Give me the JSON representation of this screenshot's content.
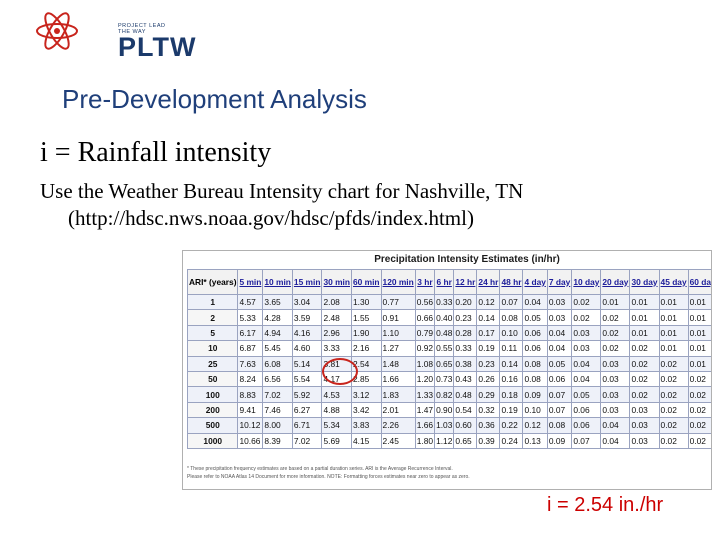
{
  "logo": {
    "tagline": "PROJECT LEAD THE WAY",
    "wordmark": "PLTW",
    "accent_red": "#c8241c",
    "accent_blue": "#1b3a6b"
  },
  "slide": {
    "title": "Pre-Development Analysis",
    "line1": "i = Rainfall intensity",
    "para_line1": "Use the Weather Bureau Intensity chart for Nashville, TN",
    "para_line2": "(http://hdsc.nws.noaa.gov/hdsc/pfds/index.html)",
    "answer": "i = 2.54 in./hr"
  },
  "chart": {
    "title": "Precipitation Intensity Estimates (in/hr)",
    "headers": [
      "ARI* (years)",
      "5 min",
      "10 min",
      "15 min",
      "30 min",
      "60 min",
      "120 min",
      "3 hr",
      "6 hr",
      "12 hr",
      "24 hr",
      "48 hr",
      "4 day",
      "7 day",
      "10 day",
      "20 day",
      "30 day",
      "45 day",
      "60 day"
    ],
    "rows": [
      [
        "1",
        "4.57",
        "3.65",
        "3.04",
        "2.08",
        "1.30",
        "0.77",
        "0.56",
        "0.33",
        "0.20",
        "0.12",
        "0.07",
        "0.04",
        "0.03",
        "0.02",
        "0.01",
        "0.01",
        "0.01",
        "0.01"
      ],
      [
        "2",
        "5.33",
        "4.28",
        "3.59",
        "2.48",
        "1.55",
        "0.91",
        "0.66",
        "0.40",
        "0.23",
        "0.14",
        "0.08",
        "0.05",
        "0.03",
        "0.02",
        "0.02",
        "0.01",
        "0.01",
        "0.01"
      ],
      [
        "5",
        "6.17",
        "4.94",
        "4.16",
        "2.96",
        "1.90",
        "1.10",
        "0.79",
        "0.48",
        "0.28",
        "0.17",
        "0.10",
        "0.06",
        "0.04",
        "0.03",
        "0.02",
        "0.01",
        "0.01",
        "0.01"
      ],
      [
        "10",
        "6.87",
        "5.45",
        "4.60",
        "3.33",
        "2.16",
        "1.27",
        "0.92",
        "0.55",
        "0.33",
        "0.19",
        "0.11",
        "0.06",
        "0.04",
        "0.03",
        "0.02",
        "0.02",
        "0.01",
        "0.01"
      ],
      [
        "25",
        "7.63",
        "6.08",
        "5.14",
        "3.81",
        "2.54",
        "1.48",
        "1.08",
        "0.65",
        "0.38",
        "0.23",
        "0.14",
        "0.08",
        "0.05",
        "0.04",
        "0.03",
        "0.02",
        "0.02",
        "0.01"
      ],
      [
        "50",
        "8.24",
        "6.56",
        "5.54",
        "4.17",
        "2.85",
        "1.66",
        "1.20",
        "0.73",
        "0.43",
        "0.26",
        "0.16",
        "0.08",
        "0.06",
        "0.04",
        "0.03",
        "0.02",
        "0.02",
        "0.02"
      ],
      [
        "100",
        "8.83",
        "7.02",
        "5.92",
        "4.53",
        "3.12",
        "1.83",
        "1.33",
        "0.82",
        "0.48",
        "0.29",
        "0.18",
        "0.09",
        "0.07",
        "0.05",
        "0.03",
        "0.02",
        "0.02",
        "0.02"
      ],
      [
        "200",
        "9.41",
        "7.46",
        "6.27",
        "4.88",
        "3.42",
        "2.01",
        "1.47",
        "0.90",
        "0.54",
        "0.32",
        "0.19",
        "0.10",
        "0.07",
        "0.06",
        "0.03",
        "0.03",
        "0.02",
        "0.02"
      ],
      [
        "500",
        "10.12",
        "8.00",
        "6.71",
        "5.34",
        "3.83",
        "2.26",
        "1.66",
        "1.03",
        "0.60",
        "0.36",
        "0.22",
        "0.12",
        "0.08",
        "0.06",
        "0.04",
        "0.03",
        "0.02",
        "0.02"
      ],
      [
        "1000",
        "10.66",
        "8.39",
        "7.02",
        "5.69",
        "4.15",
        "2.45",
        "1.80",
        "1.12",
        "0.65",
        "0.39",
        "0.24",
        "0.13",
        "0.09",
        "0.07",
        "0.04",
        "0.03",
        "0.02",
        "0.02"
      ]
    ],
    "footnote_line1": "* These precipitation frequency estimates are based on a partial duration series. ARI is the Average Recurrence Interval.",
    "footnote_line2": "Please refer to NOAA Atlas 14 Document for more information. NOTE: Formatting forces estimates near zero to appear as zero.",
    "highlight_value": "2.54"
  }
}
